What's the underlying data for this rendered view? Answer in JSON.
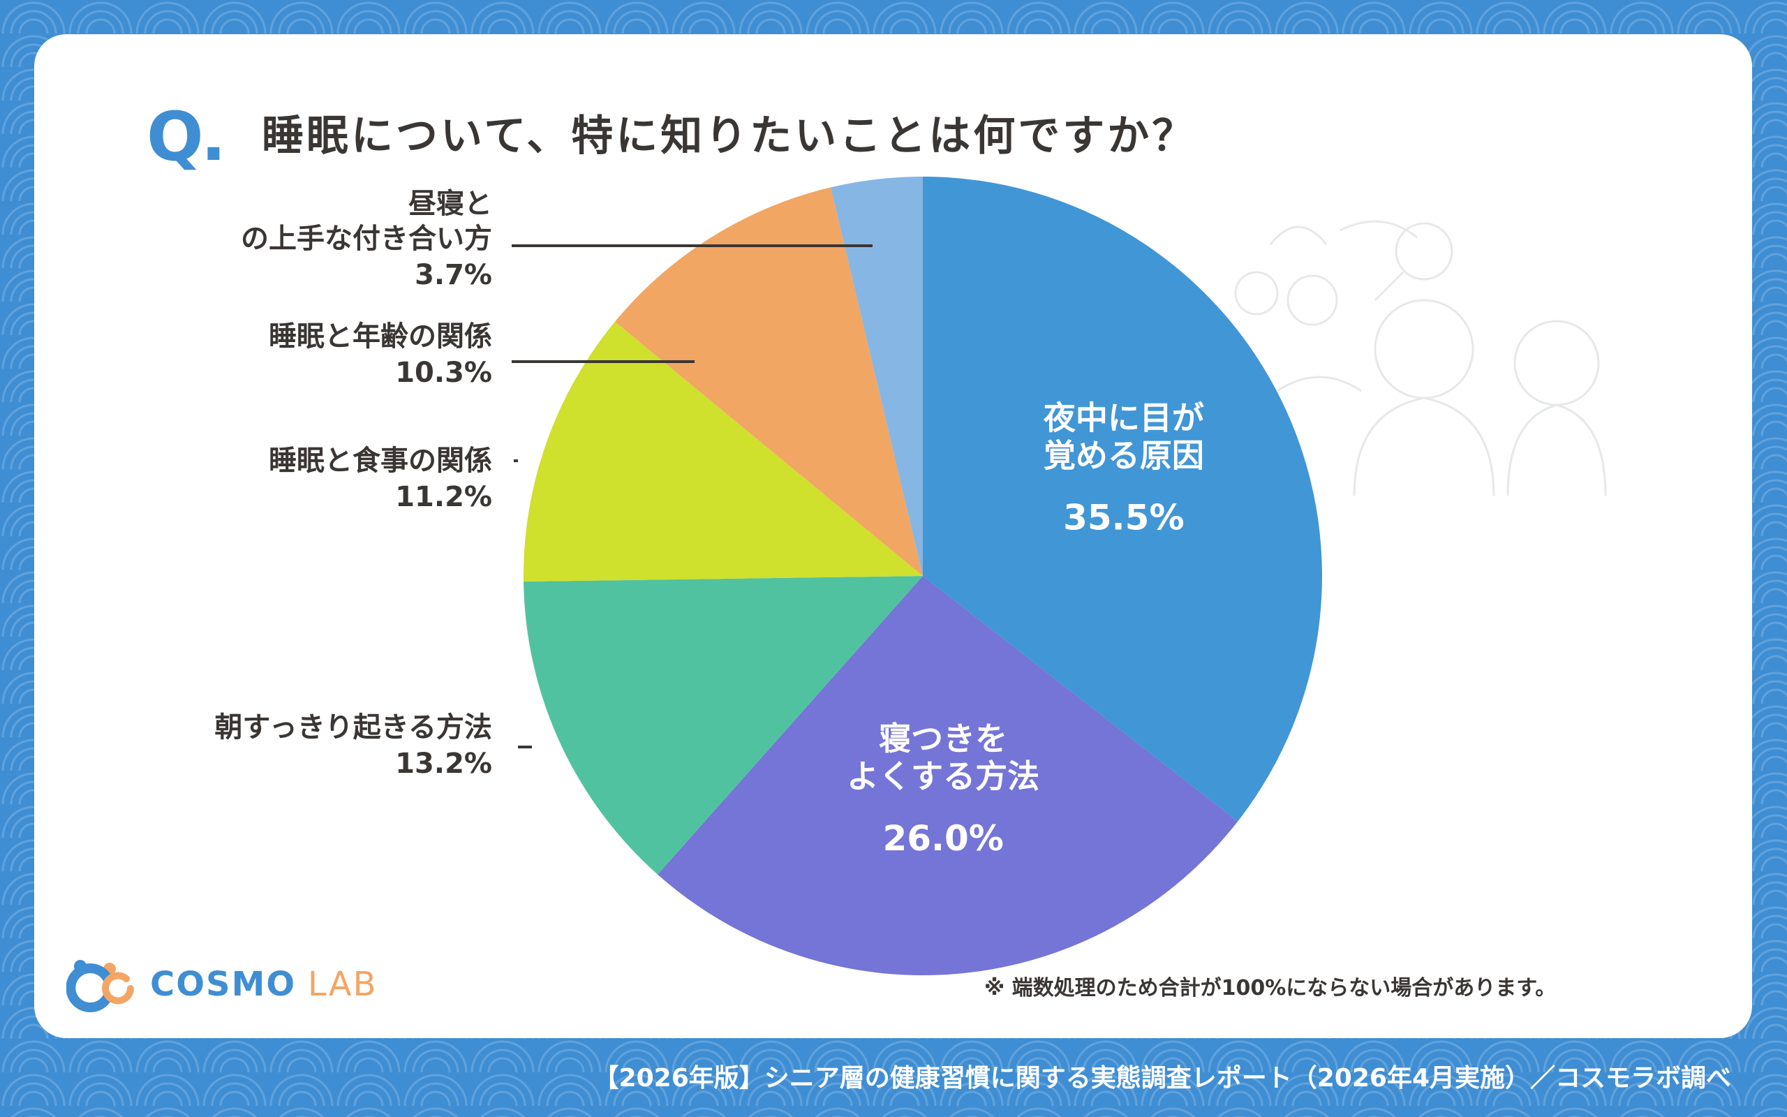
{
  "title": {
    "prefix": "Q.",
    "text": "睡眠について、特に知りたいことは何ですか？"
  },
  "chart_data": {
    "type": "pie",
    "title": "睡眠について、特に知りたいことは何ですか？",
    "slices": [
      {
        "label": "夜中に目が覚める原因",
        "label_lines": [
          "夜中に目が",
          "覚める原因"
        ],
        "value": 35.5,
        "value_label": "35.5%",
        "color": "#4196d6",
        "label_inside": true
      },
      {
        "label": "寝つきをよくする方法",
        "label_lines": [
          "寝つきを",
          "よくする方法"
        ],
        "value": 26.0,
        "value_label": "26.0%",
        "color": "#7574d7",
        "label_inside": true
      },
      {
        "label": "朝すっきり起きる方法",
        "label_lines": [
          "朝すっきり起きる方法"
        ],
        "value": 13.2,
        "value_label": "13.2%",
        "color": "#50c2a0",
        "label_inside": false
      },
      {
        "label": "睡眠と食事の関係",
        "label_lines": [
          "睡眠と食事の関係"
        ],
        "value": 11.2,
        "value_label": "11.2%",
        "color": "#cfe02d",
        "label_inside": false
      },
      {
        "label": "睡眠と年齢の関係",
        "label_lines": [
          "睡眠と年齢の関係"
        ],
        "value": 10.3,
        "value_label": "10.3%",
        "color": "#f1a663",
        "label_inside": false
      },
      {
        "label": "昼寝との上手な付き合い方",
        "label_lines": [
          "昼寝と",
          "の上手な付き合い方"
        ],
        "value": 3.7,
        "value_label": "3.7%",
        "color": "#86b6e4",
        "label_inside": false
      }
    ]
  },
  "note": "※ 端数処理のため合計が100%にならない場合があります。",
  "logo": {
    "part1": "COSMO",
    "part2": "LAB",
    "icon": "cosmo-lab-logo-icon"
  },
  "footer": "【2026年版】シニア層の健康習慣に関する実態調査レポート（2026年4月実施）／コスモラボ調べ",
  "colors": {
    "accent": "#3f8ed4",
    "text": "#3a3634",
    "logo_orange": "#f3a664"
  },
  "decoration": {
    "icon": "seniors-illustration-icon"
  }
}
